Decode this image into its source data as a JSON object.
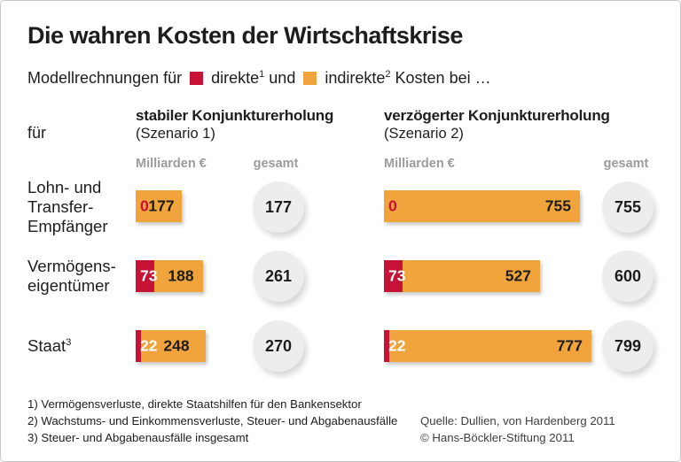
{
  "colors": {
    "direct": "#c51236",
    "indirect": "#f2a43c",
    "circle": "#ededed",
    "muted": "#9c9c9c"
  },
  "title": "Die wahren Kosten der Wirtschaftskrise",
  "subtitle": {
    "prefix": "Modellrechnungen für",
    "legend_direct": {
      "label": "direkte",
      "sup": "1"
    },
    "conjunction": "und",
    "legend_indirect": {
      "label": "indirekte",
      "sup": "2"
    },
    "suffix": "Kosten bei …"
  },
  "for_label": "für",
  "scenarios": {
    "s1": {
      "title": "stabiler Konjunkturerholung",
      "subtitle": "(Szenario 1)",
      "unit": "Milliarden €",
      "total_label": "gesamt"
    },
    "s2": {
      "title": "verzögerter Konjunkturerholung",
      "subtitle": "(Szenario 2)",
      "unit": "Milliarden €",
      "total_label": "gesamt"
    }
  },
  "rows": [
    {
      "label_lines": [
        "Lohn- und",
        "Transfer-",
        "Empfänger"
      ],
      "sup": "",
      "s1": {
        "direct": 0,
        "indirect": 177,
        "total": 177
      },
      "s2": {
        "direct": 0,
        "indirect": 755,
        "total": 755
      }
    },
    {
      "label_lines": [
        "Vermögens-",
        "eigentümer"
      ],
      "sup": "",
      "s1": {
        "direct": 73,
        "indirect": 188,
        "total": 261
      },
      "s2": {
        "direct": 73,
        "indirect": 527,
        "total": 600
      }
    },
    {
      "label_lines": [
        "Staat"
      ],
      "sup": "3",
      "s1": {
        "direct": 22,
        "indirect": 248,
        "total": 270
      },
      "s2": {
        "direct": 22,
        "indirect": 777,
        "total": 799
      }
    }
  ],
  "footnotes": [
    "1) Vermögensverluste, direkte Staatshilfen für den Bankensektor",
    "2) Wachstums- und Einkommensverluste, Steuer- und Abgabenausfälle",
    "3) Steuer- und Abgabenausfälle insgesamt"
  ],
  "source_lines": [
    "Quelle: Dullien, von Hardenberg 2011",
    "© Hans-Böckler-Stiftung 2011"
  ],
  "chart_data": {
    "type": "bar",
    "title": "Die wahren Kosten der Wirtschaftskrise",
    "subtitle": "Modellrechnungen für direkte und indirekte Kosten",
    "unit": "Milliarden €",
    "categories": [
      "Lohn- und Transfer-Empfänger",
      "Vermögenseigentümer",
      "Staat"
    ],
    "groups": [
      {
        "name": "stabiler Konjunkturerholung (Szenario 1)",
        "series": [
          {
            "name": "direkte Kosten",
            "values": [
              0,
              73,
              22
            ]
          },
          {
            "name": "indirekte Kosten",
            "values": [
              177,
              188,
              248
            ]
          }
        ],
        "totals": [
          177,
          261,
          270
        ]
      },
      {
        "name": "verzögerter Konjunkturerholung (Szenario 2)",
        "series": [
          {
            "name": "direkte Kosten",
            "values": [
              0,
              73,
              22
            ]
          },
          {
            "name": "indirekte Kosten",
            "values": [
              755,
              527,
              777
            ]
          }
        ],
        "totals": [
          755,
          600,
          799
        ]
      }
    ],
    "legend": [
      "direkte Kosten",
      "indirekte Kosten"
    ],
    "colors": {
      "direkte Kosten": "#c51236",
      "indirekte Kosten": "#f2a43c"
    },
    "orientation": "horizontal",
    "stacked": true,
    "grid": false
  }
}
